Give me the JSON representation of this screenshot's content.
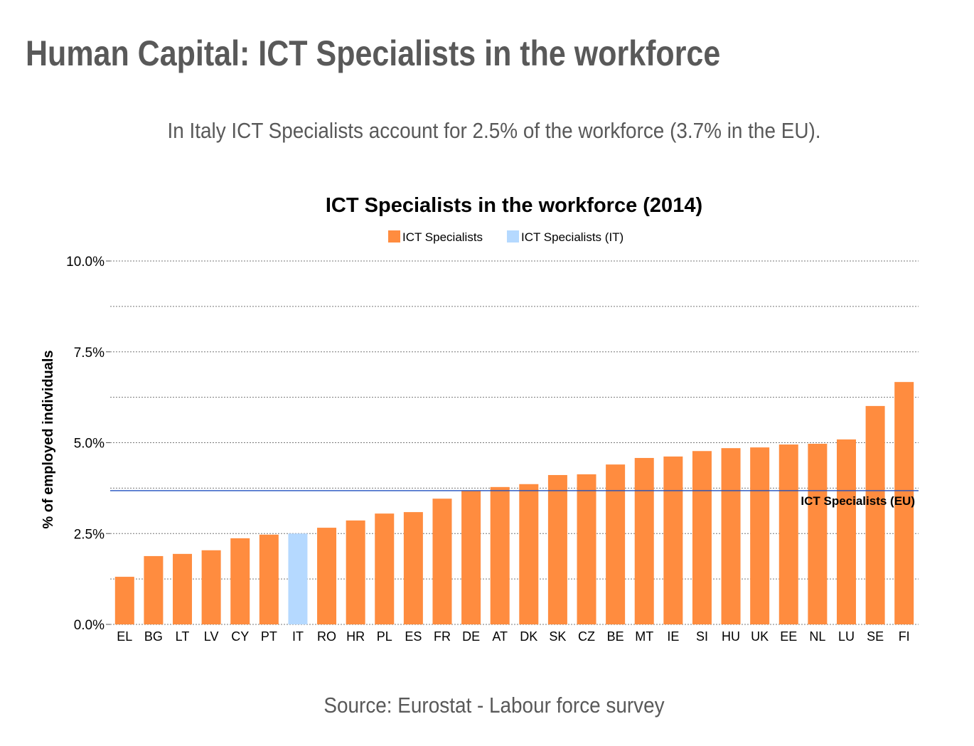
{
  "header": {
    "title": "Human Capital: ICT Specialists in the workforce",
    "subtitle": "In Italy ICT Specialists account for 2.5% of the workforce (3.7% in the EU).",
    "source": "Source: Eurostat - Labour force survey"
  },
  "colors": {
    "bar": "#FF8C3F",
    "highlight": "#B5D9FF",
    "eu_line": "#1F4FBF",
    "grid": "#777777"
  },
  "chart_data": {
    "type": "bar",
    "title": "ICT Specialists in the workforce (2014)",
    "xlabel": "",
    "ylabel": "% of employed individuals",
    "ylim": [
      0,
      10
    ],
    "yticks": [
      0,
      2.5,
      5,
      7.5,
      10
    ],
    "ytick_labels": [
      "0.0%",
      "2.5%",
      "5.0%",
      "7.5%",
      "10.0%"
    ],
    "grid": true,
    "legend": {
      "placement": "top-center",
      "entries": [
        "ICT Specialists",
        "ICT Specialists (IT)"
      ]
    },
    "categories": [
      "EL",
      "BG",
      "LT",
      "LV",
      "CY",
      "PT",
      "IT",
      "RO",
      "HR",
      "PL",
      "ES",
      "FR",
      "DE",
      "AT",
      "DK",
      "SK",
      "CZ",
      "BE",
      "MT",
      "IE",
      "SI",
      "HU",
      "UK",
      "EE",
      "NL",
      "LU",
      "SE",
      "FI"
    ],
    "values": [
      1.31,
      1.88,
      1.94,
      2.04,
      2.37,
      2.47,
      2.5,
      2.66,
      2.86,
      3.05,
      3.09,
      3.46,
      3.68,
      3.78,
      3.86,
      4.11,
      4.13,
      4.4,
      4.58,
      4.62,
      4.77,
      4.85,
      4.87,
      4.95,
      4.97,
      5.09,
      6.01,
      6.67
    ],
    "highlight": "IT",
    "reference_line": {
      "label": "ICT Specialists (EU)",
      "value": 3.68
    }
  }
}
